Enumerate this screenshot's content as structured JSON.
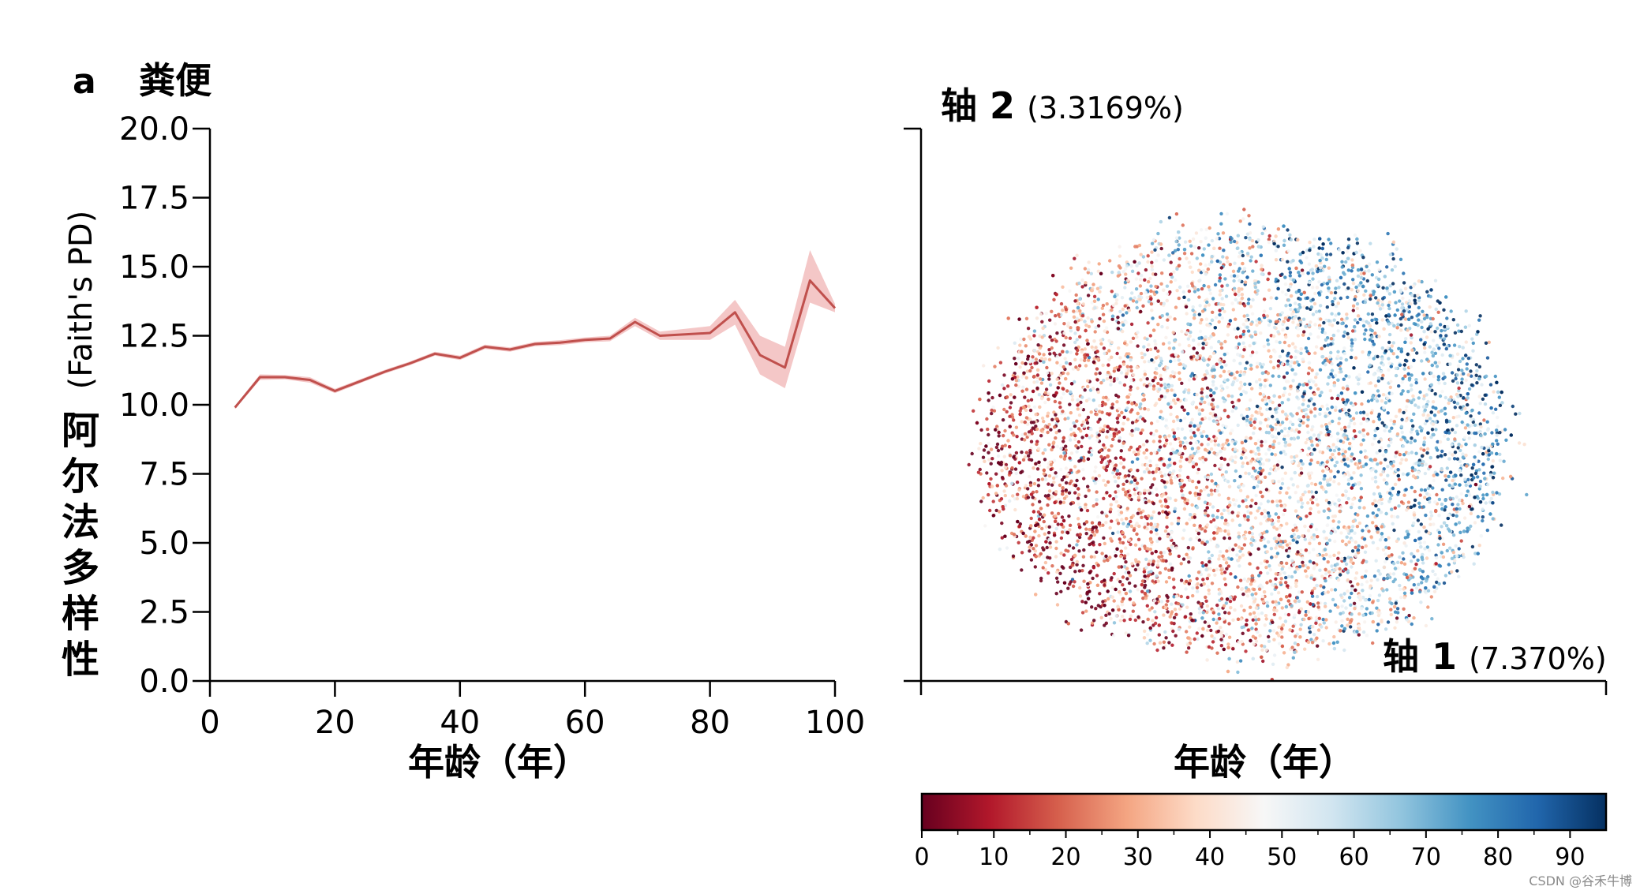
{
  "panel_letter": "a",
  "panel_title": "粪便",
  "chart_data": [
    {
      "type": "line",
      "ylabel_bold": "阿尔法多样性",
      "ylabel_normal": "(Faith's PD)",
      "xlabel": "年龄（年）",
      "xlim": [
        0,
        100
      ],
      "ylim": [
        0,
        20
      ],
      "xticks": [
        "0",
        "20",
        "40",
        "60",
        "80",
        "100"
      ],
      "yticks": [
        "0.0",
        "2.5",
        "5.0",
        "7.5",
        "10.0",
        "12.5",
        "15.0",
        "17.5",
        "20.0"
      ],
      "line_color": "#c0504d",
      "band_color": "#f4c7c7",
      "series": [
        {
          "x": [
            4,
            8,
            12,
            16,
            20,
            24,
            28,
            32,
            36,
            40,
            44,
            48,
            52,
            56,
            60,
            64,
            68,
            72,
            76,
            80,
            84,
            88,
            92,
            96,
            100
          ],
          "y": [
            9.9,
            11.0,
            11.0,
            10.9,
            10.5,
            10.85,
            11.2,
            11.5,
            11.85,
            11.7,
            12.1,
            12.0,
            12.2,
            12.25,
            12.35,
            12.4,
            13.0,
            12.5,
            12.55,
            12.6,
            13.35,
            11.8,
            11.35,
            14.5,
            13.5
          ],
          "lower": [
            9.85,
            10.9,
            10.92,
            10.8,
            10.42,
            10.78,
            11.13,
            11.43,
            11.78,
            11.62,
            12.02,
            11.92,
            12.12,
            12.16,
            12.26,
            12.3,
            12.85,
            12.35,
            12.35,
            12.35,
            12.9,
            11.1,
            10.6,
            13.7,
            13.35
          ],
          "upper": [
            9.95,
            11.1,
            11.08,
            11.0,
            10.58,
            10.92,
            11.27,
            11.57,
            11.92,
            11.78,
            12.18,
            12.08,
            12.28,
            12.34,
            12.44,
            12.5,
            13.15,
            12.65,
            12.75,
            12.85,
            13.8,
            12.5,
            12.1,
            15.6,
            13.65
          ]
        }
      ]
    },
    {
      "type": "scatter",
      "axis2_label": "轴 2",
      "axis2_pct": "(3.3169%)",
      "axis1_label": "轴 1",
      "axis1_pct": "(7.370%)",
      "color_variable": "年龄（年）",
      "colorbar_ticks": [
        "0",
        "10",
        "20",
        "30",
        "40",
        "50",
        "60",
        "70",
        "80",
        "90"
      ],
      "colorbar_range": [
        0,
        95
      ],
      "colormap_stops": [
        "#67001f",
        "#b2182b",
        "#d6604d",
        "#f4a582",
        "#fddbc7",
        "#f7f7f7",
        "#d1e5f0",
        "#92c5de",
        "#4393c3",
        "#2166ac",
        "#053061"
      ]
    }
  ]
}
